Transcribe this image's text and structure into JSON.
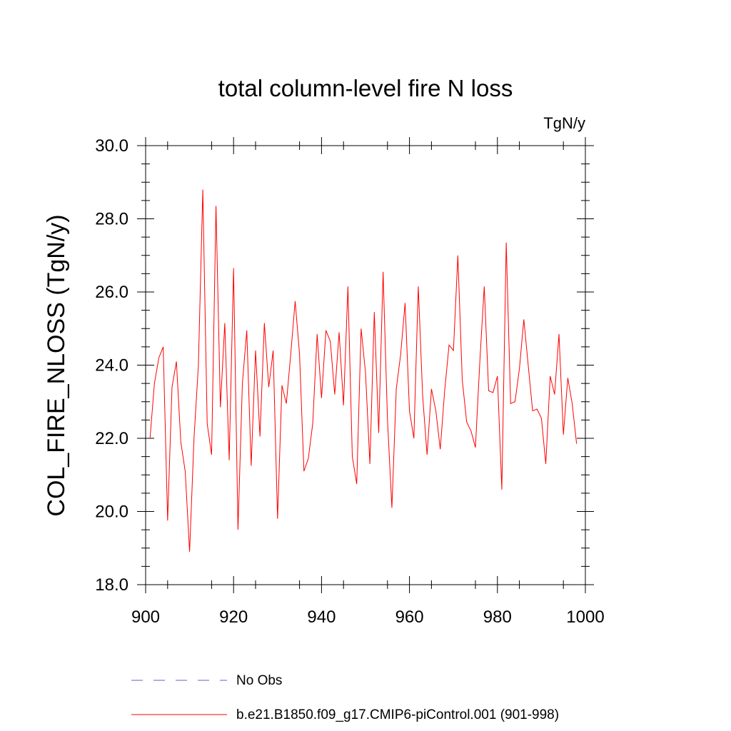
{
  "chart_data": {
    "type": "line",
    "title": "total column-level fire N loss",
    "units_label": "TgN/y",
    "ylabel": "COL_FIRE_NLOSS  (TgN/y)",
    "xlabel": "",
    "xlim": [
      900,
      1000
    ],
    "ylim": [
      18.0,
      30.0
    ],
    "xticks": [
      900,
      920,
      940,
      960,
      980,
      1000
    ],
    "xtick_labels": [
      "900",
      "920",
      "940",
      "960",
      "980",
      "1000"
    ],
    "yticks": [
      18.0,
      20.0,
      22.0,
      24.0,
      26.0,
      28.0,
      30.0
    ],
    "ytick_labels": [
      "18.0",
      "20.0",
      "22.0",
      "24.0",
      "26.0",
      "28.0",
      "30.0"
    ],
    "series": [
      {
        "name": "b.e21.B1850.f09_g17.CMIP6-piControl.001 (901-998)",
        "color": "#ff0000",
        "style": "solid",
        "x_start": 901,
        "values": [
          22.0,
          23.5,
          24.2,
          24.5,
          19.75,
          23.4,
          24.1,
          21.9,
          21.1,
          18.9,
          22.0,
          24.0,
          28.8,
          22.4,
          21.55,
          28.35,
          22.85,
          25.15,
          21.4,
          26.65,
          19.5,
          23.5,
          24.95,
          21.25,
          24.4,
          22.05,
          25.15,
          23.4,
          24.4,
          19.8,
          23.45,
          22.95,
          24.3,
          25.75,
          24.3,
          21.1,
          21.45,
          22.4,
          24.85,
          23.1,
          24.95,
          24.65,
          23.2,
          24.9,
          22.9,
          26.15,
          21.5,
          20.75,
          25.0,
          23.8,
          21.3,
          25.45,
          22.15,
          26.55,
          22.5,
          20.1,
          23.35,
          24.3,
          25.7,
          22.75,
          22.0,
          26.15,
          23.15,
          21.55,
          23.35,
          22.75,
          21.7,
          23.3,
          24.55,
          24.4,
          27.0,
          23.6,
          22.45,
          22.2,
          21.75,
          24.1,
          26.15,
          23.3,
          23.25,
          23.7,
          20.6,
          27.35,
          22.95,
          23.0,
          23.9,
          25.25,
          24.0,
          22.75,
          22.8,
          22.55,
          21.3,
          23.7,
          23.2,
          24.85,
          22.1,
          23.65,
          22.95,
          21.85
        ]
      }
    ],
    "legend": [
      {
        "label": "No Obs",
        "color": "#6a5acd",
        "style": "dashed"
      },
      {
        "label": "b.e21.B1850.f09_g17.CMIP6-piControl.001 (901-998)",
        "color": "#ff0000",
        "style": "solid"
      }
    ],
    "legend_position": "bottom"
  }
}
